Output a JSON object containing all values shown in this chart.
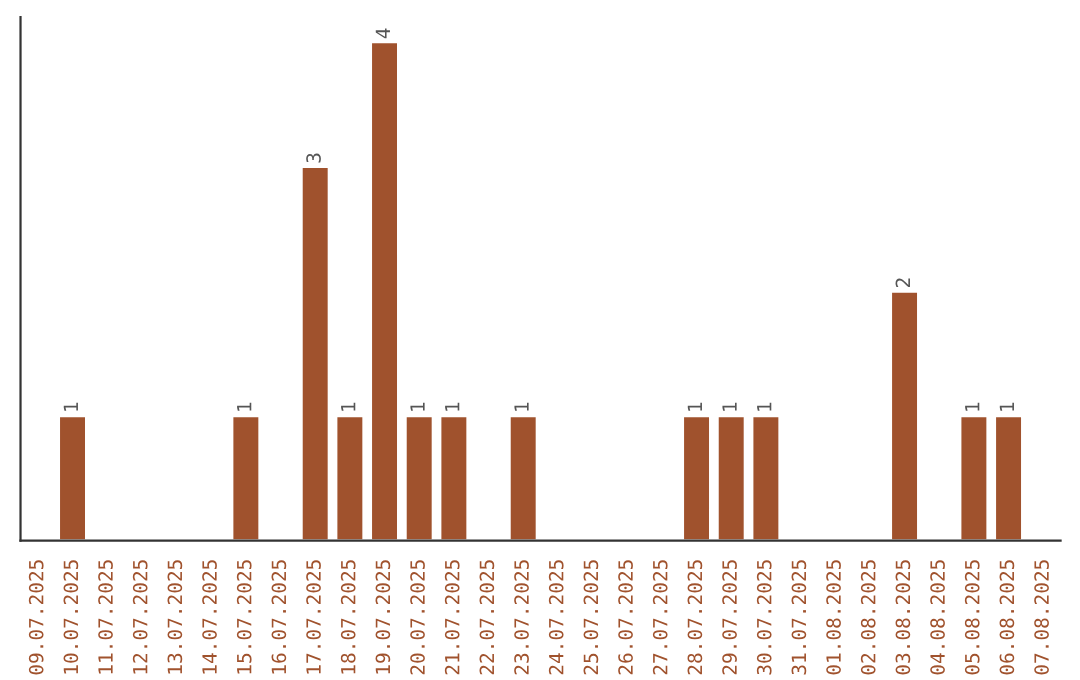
{
  "chart_data": {
    "type": "bar",
    "categories": [
      "09.07.2025",
      "10.07.2025",
      "11.07.2025",
      "12.07.2025",
      "13.07.2025",
      "14.07.2025",
      "15.07.2025",
      "16.07.2025",
      "17.07.2025",
      "18.07.2025",
      "19.07.2025",
      "20.07.2025",
      "21.07.2025",
      "22.07.2025",
      "23.07.2025",
      "24.07.2025",
      "25.07.2025",
      "26.07.2025",
      "27.07.2025",
      "28.07.2025",
      "29.07.2025",
      "30.07.2025",
      "31.07.2025",
      "01.08.2025",
      "02.08.2025",
      "03.08.2025",
      "04.08.2025",
      "05.08.2025",
      "06.08.2025",
      "07.08.2025"
    ],
    "values": [
      null,
      1,
      null,
      null,
      null,
      null,
      1,
      null,
      3,
      1,
      4,
      1,
      1,
      null,
      1,
      null,
      null,
      null,
      null,
      1,
      1,
      1,
      null,
      null,
      null,
      2,
      null,
      1,
      1,
      null
    ],
    "value_labels": [
      null,
      "1",
      null,
      null,
      null,
      null,
      "1",
      null,
      "3",
      "1",
      "4",
      "1",
      "1",
      null,
      "1",
      null,
      null,
      null,
      null,
      "1",
      "1",
      "1",
      null,
      null,
      null,
      "2",
      null,
      "1",
      "1",
      null
    ],
    "color": "#a0522d",
    "grid": false,
    "legend": false,
    "tick_labels": "x"
  }
}
